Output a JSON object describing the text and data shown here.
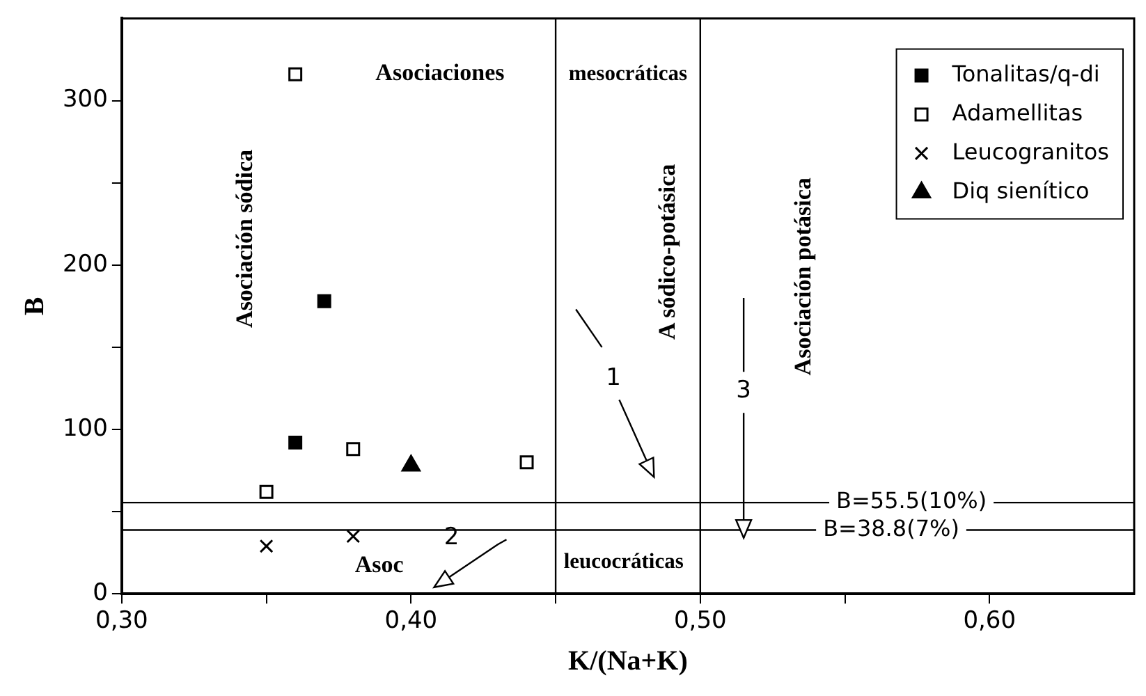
{
  "chart_data": {
    "type": "scatter",
    "xlabel": "K/(Na+K)",
    "ylabel": "B",
    "xlim": [
      0.3,
      0.65
    ],
    "ylim": [
      0,
      350
    ],
    "xticks": [
      {
        "value": 0.3,
        "label": "0,30"
      },
      {
        "value": 0.35,
        "label": null
      },
      {
        "value": 0.4,
        "label": "0,40"
      },
      {
        "value": 0.45,
        "label": null
      },
      {
        "value": 0.5,
        "label": "0,50"
      },
      {
        "value": 0.55,
        "label": null
      },
      {
        "value": 0.6,
        "label": "0,60"
      }
    ],
    "yticks": [
      0,
      {
        "value": 50,
        "label": null
      },
      100,
      {
        "value": 150,
        "label": null
      },
      200,
      {
        "value": 250,
        "label": null
      },
      300
    ],
    "grid": false,
    "legend": "top right",
    "series": [
      {
        "name": "Tonalitas/q-di",
        "color": "#000000",
        "marker": "square",
        "x": [
          0.36,
          0.37
        ],
        "values": [
          92,
          178
        ]
      },
      {
        "name": "Adamellitas",
        "color": "#ffffff",
        "marker": "square",
        "x": [
          0.35,
          0.36,
          0.38,
          0.44
        ],
        "values": [
          62,
          316,
          88,
          80
        ]
      },
      {
        "name": "Leucogranitos",
        "color": "#000000",
        "marker": "cross",
        "x": [
          0.35,
          0.38
        ],
        "values": [
          29,
          35
        ]
      },
      {
        "name": "Diq sienítico",
        "color": "#000000",
        "marker": "triangle",
        "x": [
          0.4
        ],
        "values": [
          78
        ]
      }
    ],
    "ref_lines": [
      {
        "axis": "x",
        "value": 0.45
      },
      {
        "axis": "x",
        "value": 0.5
      },
      {
        "axis": "y",
        "value": 55.5,
        "label": "B=55.5(10%)"
      },
      {
        "axis": "y",
        "value": 38.8,
        "label": "B=38.8(7%)"
      }
    ],
    "annotations": [
      "Asociaciones",
      "mesocráticas",
      "Asociación sódica",
      "A sódico-potásica",
      "Asociación potásica",
      "Asoc",
      "leucocráticas",
      "1",
      "2",
      "3"
    ]
  }
}
